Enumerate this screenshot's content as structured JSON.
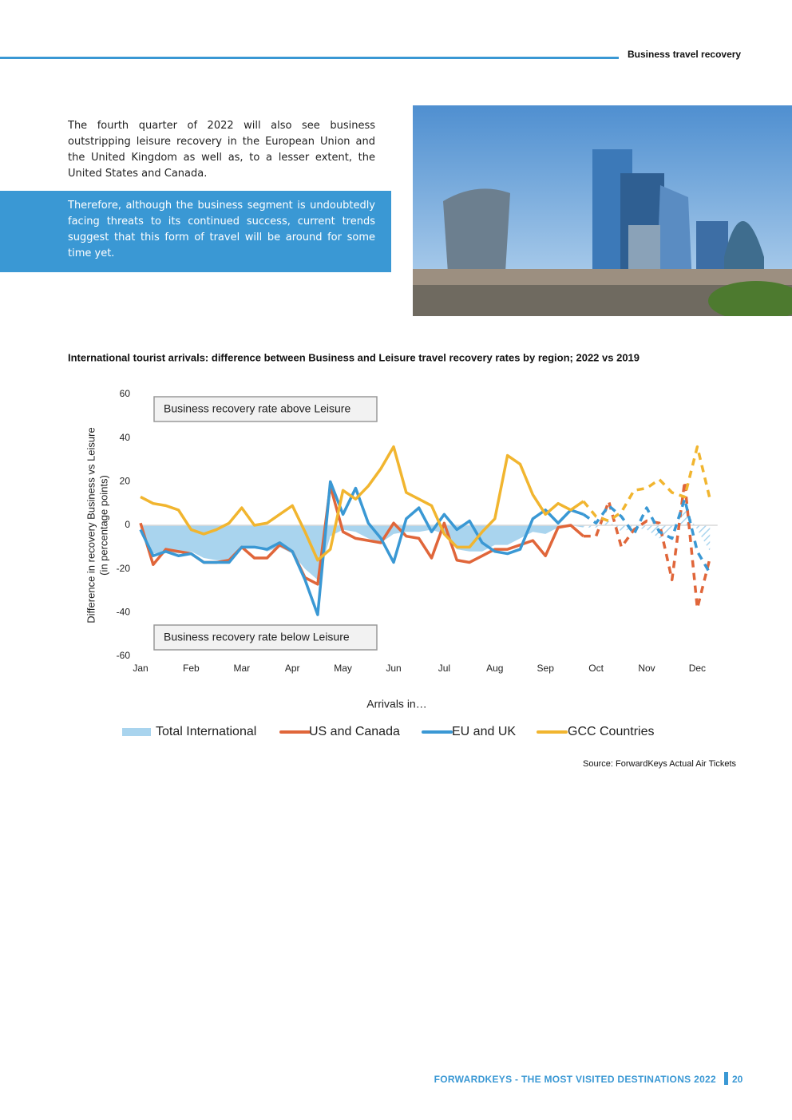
{
  "header": {
    "section": "Business travel recovery"
  },
  "paragraphs": [
    "The fourth quarter of 2022 will also see business outstripping leisure recovery in the European Union and the United Kingdom as well as, to a lesser extent, the United States and Canada.",
    "Therefore, although the business segment is undoubtedly facing threats to its continued success, current trends suggest that this form of travel will be around for some time yet."
  ],
  "chart_data": {
    "type": "line",
    "title": "International tourist arrivals: difference between Business and Leisure travel recovery rates by region; 2022 vs 2019",
    "ylabel": [
      "Difference in recovery Business vs Leisure",
      "(in percentage points)"
    ],
    "xlabel": "Arrivals in…",
    "annotations": [
      "Business recovery rate above Leisure",
      "Business recovery rate below Leisure"
    ],
    "source": "Source: ForwardKeys Actual Air Tickets",
    "x": [
      0,
      0.25,
      0.5,
      0.75,
      1,
      1.25,
      1.5,
      1.75,
      2,
      2.25,
      2.5,
      2.75,
      3,
      3.25,
      3.5,
      3.75,
      4,
      4.25,
      4.5,
      4.75,
      5,
      5.25,
      5.5,
      5.75,
      6,
      6.25,
      6.5,
      6.75,
      7,
      7.25,
      7.5,
      7.75,
      8,
      8.25,
      8.5,
      8.75,
      9,
      9.25,
      9.5,
      9.75,
      10,
      10.25,
      10.5,
      10.75,
      11,
      11.25
    ],
    "dashed_from_x": 8.75,
    "series": [
      {
        "name": "Total International",
        "kind": "area",
        "color": "#a9d4ee",
        "values": [
          -1,
          -13,
          -12,
          -13,
          -12,
          -15,
          -16,
          -16,
          -10,
          -10,
          -12,
          -10,
          -13,
          -20,
          -25,
          -5,
          -2,
          -3,
          -6,
          -8,
          -4,
          -3,
          -3,
          -2,
          -4,
          -11,
          -12,
          -12,
          -9,
          -9,
          -6,
          -3,
          -4,
          -1,
          0,
          -1,
          -1,
          2,
          -3,
          -1,
          -2,
          -6,
          -3,
          8,
          -2,
          -12
        ]
      },
      {
        "name": "US and Canada",
        "kind": "line",
        "color": "#e0663a",
        "values": [
          1,
          -18,
          -11,
          -12,
          -13,
          -17,
          -17,
          -16,
          -10,
          -15,
          -15,
          -9,
          -12,
          -24,
          -27,
          18,
          -3,
          -6,
          -7,
          -8,
          1,
          -5,
          -6,
          -15,
          1,
          -16,
          -17,
          -14,
          -11,
          -11,
          -9,
          -7,
          -14,
          -1,
          0,
          -5,
          -5,
          11,
          -10,
          -2,
          2,
          1,
          -25,
          20,
          -38,
          -15
        ]
      },
      {
        "name": "EU and UK",
        "kind": "line",
        "color": "#3a98d4",
        "values": [
          -2,
          -14,
          -12,
          -14,
          -13,
          -17,
          -17,
          -17,
          -10,
          -10,
          -11,
          -8,
          -12,
          -25,
          -41,
          20,
          5,
          17,
          1,
          -6,
          -17,
          3,
          8,
          -3,
          5,
          -2,
          2,
          -8,
          -12,
          -13,
          -11,
          3,
          7,
          1,
          7,
          5,
          1,
          9,
          4,
          -4,
          8,
          -3,
          -6,
          12,
          -12,
          -22
        ]
      },
      {
        "name": "GCC Countries",
        "kind": "line",
        "color": "#f1b52f",
        "values": [
          13,
          10,
          9,
          7,
          -2,
          -4,
          -2,
          1,
          8,
          0,
          1,
          5,
          9,
          -3,
          -16,
          -11,
          16,
          12,
          18,
          26,
          36,
          15,
          12,
          9,
          -4,
          -10,
          -10,
          -3,
          3,
          32,
          28,
          14,
          5,
          10,
          7,
          11,
          4,
          2,
          6,
          16,
          17,
          21,
          15,
          13,
          36,
          12
        ]
      }
    ],
    "xlim": [
      0,
      11.4
    ],
    "xticks": [
      {
        "value": 0,
        "label": "Jan"
      },
      {
        "value": 1,
        "label": "Feb"
      },
      {
        "value": 2,
        "label": "Mar"
      },
      {
        "value": 3,
        "label": "Apr"
      },
      {
        "value": 4,
        "label": "May"
      },
      {
        "value": 5,
        "label": "Jun"
      },
      {
        "value": 6,
        "label": "Jul"
      },
      {
        "value": 7,
        "label": "Aug"
      },
      {
        "value": 8,
        "label": "Sep"
      },
      {
        "value": 9,
        "label": "Oct"
      },
      {
        "value": 10,
        "label": "Nov"
      },
      {
        "value": 11,
        "label": "Dec"
      }
    ],
    "ylim": [
      -60,
      60
    ],
    "yticks": [
      -60,
      -40,
      -20,
      0,
      20,
      40,
      60
    ],
    "legend": "bottom"
  },
  "footer": {
    "publication": "FORWARDKEYS - THE MOST VISITED DESTINATIONS 2022",
    "page": "20"
  }
}
